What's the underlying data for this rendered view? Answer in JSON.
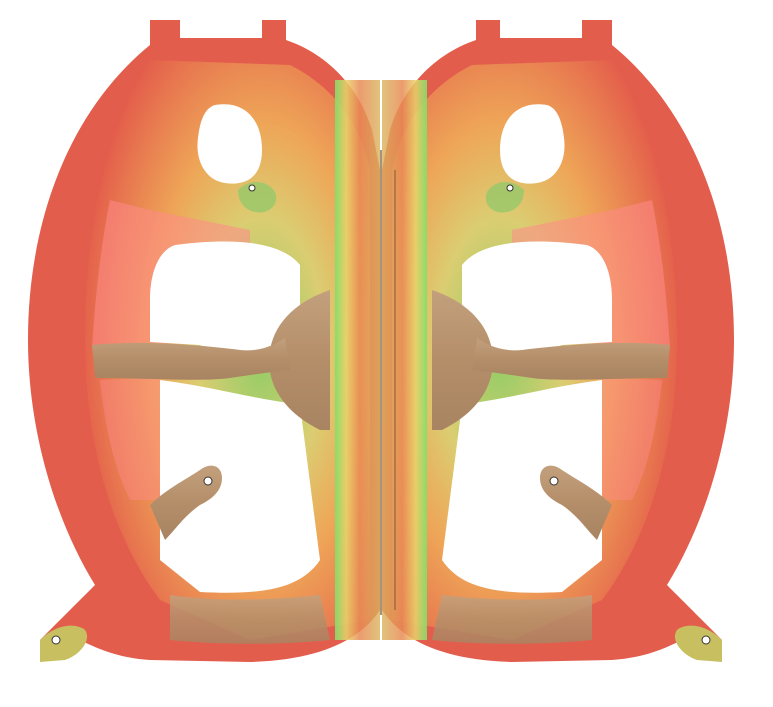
{
  "colors": {
    "background": "#ffffff",
    "wood": "#b99572",
    "wood_dark": "#9c7a58",
    "stress_high": "#e8604f",
    "stress_mid": "#f0b85a",
    "stress_low": "#f5e98a",
    "stress_min": "#7fe06a",
    "overlay_pink": "#ff7f7f"
  },
  "panels": [
    {
      "name": "left-panel",
      "mirrored": false
    },
    {
      "name": "right-panel",
      "mirrored": true
    }
  ]
}
